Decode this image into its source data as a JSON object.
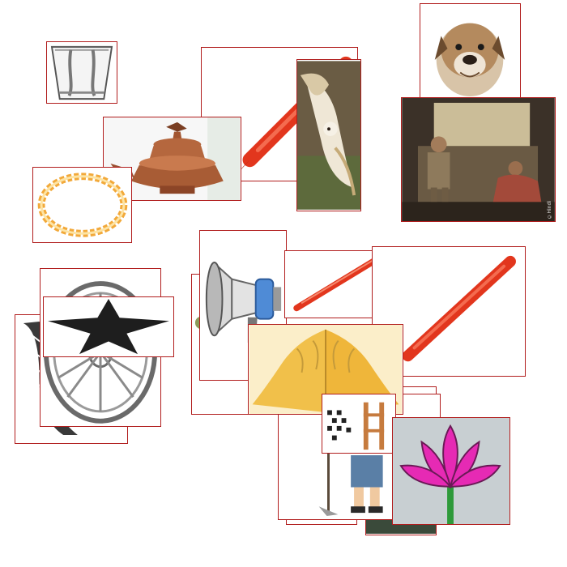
{
  "watermark": "©Hindi",
  "colors": {
    "tile_border": "#b11d1d",
    "pen_red": "#e2361d",
    "lotus_pink": "#e62ab4",
    "copper": "#b5673e",
    "flame_orange": "#f2a93a",
    "megaphone_blue": "#4f8bd6",
    "hands_yellow": "#f1c04a"
  },
  "tiles": [
    {
      "name": "tile-glass",
      "subject": "glass-icon"
    },
    {
      "name": "tile-pen-large-top",
      "subject": "pen-icon"
    },
    {
      "name": "tile-bulldog",
      "subject": "dog-icon"
    },
    {
      "name": "tile-copper-lamp",
      "subject": "lamp-icon"
    },
    {
      "name": "tile-owl",
      "subject": "owl-icon"
    },
    {
      "name": "tile-elderly-couple",
      "subject": "people-icon"
    },
    {
      "name": "tile-flame-ring",
      "subject": "flame-ring-icon"
    },
    {
      "name": "tile-feather",
      "subject": "feather-icon"
    },
    {
      "name": "tile-wheel",
      "subject": "wheel-icon"
    },
    {
      "name": "tile-star",
      "subject": "star-icon"
    },
    {
      "name": "tile-megaphone",
      "subject": "megaphone-icon"
    },
    {
      "name": "tile-pen-small",
      "subject": "pen-icon"
    },
    {
      "name": "tile-pen-right",
      "subject": "pen-icon"
    },
    {
      "name": "tile-folded-hands",
      "subject": "folded-hands-icon"
    },
    {
      "name": "tile-farmer",
      "subject": "farmer-icon"
    },
    {
      "name": "tile-lotus",
      "subject": "lotus-icon"
    }
  ]
}
